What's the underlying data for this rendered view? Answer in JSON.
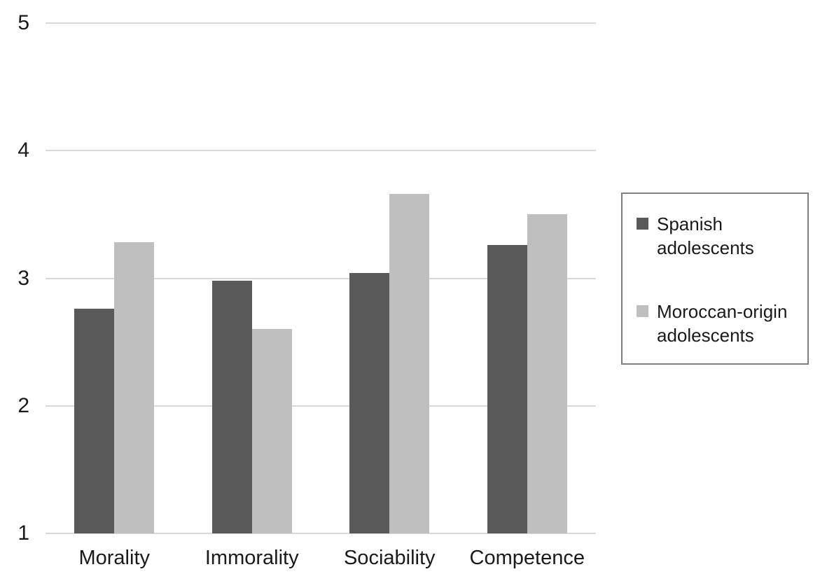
{
  "chart_data": {
    "type": "bar",
    "title": "",
    "xlabel": "",
    "ylabel": "",
    "categories": [
      "Morality",
      "Immorality",
      "Sociability",
      "Competence"
    ],
    "series": [
      {
        "name": "Spanish adolescents",
        "color": "#595959",
        "values": [
          2.76,
          2.98,
          3.04,
          3.26
        ]
      },
      {
        "name": "Moroccan-origin adolescents",
        "color": "#BFBFBF",
        "values": [
          3.28,
          2.6,
          3.66,
          3.5
        ]
      }
    ],
    "ylim": [
      1,
      5
    ],
    "yticks": [
      5,
      4,
      3,
      2,
      1
    ],
    "grid": true,
    "legend_position": "right"
  },
  "colors": {
    "background": "#FFFFFF",
    "gridline": "#D9D9D9",
    "axis_line": "#D9D9D9",
    "text": "#1A1A1A",
    "legend_border": "#808080",
    "series_dark": "#595959",
    "series_light": "#BFBFBF"
  }
}
